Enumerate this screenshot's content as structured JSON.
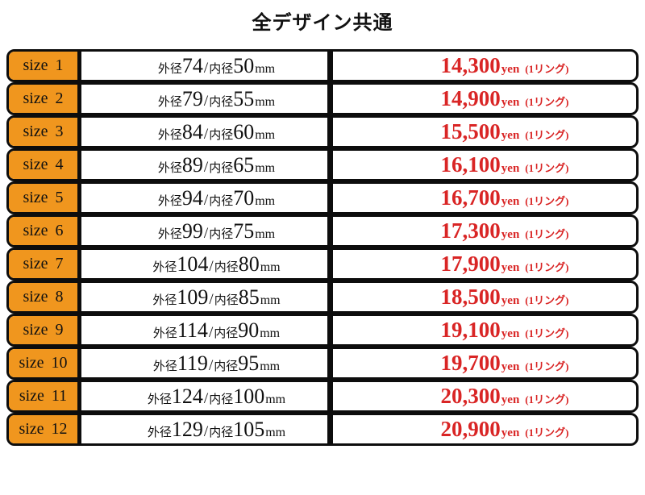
{
  "title": "全デザイン共通",
  "colors": {
    "orange": "#F0961E",
    "price_red": "#D92525",
    "border": "#0D0D0D",
    "text": "#111111"
  },
  "table": {
    "labels": {
      "outer_prefix": "外径",
      "inner_prefix": "内径",
      "separator": "/",
      "unit": "mm",
      "currency": "yen",
      "per_ring_note": "(1リング)"
    },
    "rows": [
      {
        "size": "size 1",
        "outer": "74",
        "inner": "50",
        "price": "14,300"
      },
      {
        "size": "size 2",
        "outer": "79",
        "inner": "55",
        "price": "14,900"
      },
      {
        "size": "size 3",
        "outer": "84",
        "inner": "60",
        "price": "15,500"
      },
      {
        "size": "size 4",
        "outer": "89",
        "inner": "65",
        "price": "16,100"
      },
      {
        "size": "size 5",
        "outer": "94",
        "inner": "70",
        "price": "16,700"
      },
      {
        "size": "size 6",
        "outer": "99",
        "inner": "75",
        "price": "17,300"
      },
      {
        "size": "size 7",
        "outer": "104",
        "inner": "80",
        "price": "17,900"
      },
      {
        "size": "size 8",
        "outer": "109",
        "inner": "85",
        "price": "18,500"
      },
      {
        "size": "size 9",
        "outer": "114",
        "inner": "90",
        "price": "19,100"
      },
      {
        "size": "size 10",
        "outer": "119",
        "inner": "95",
        "price": "19,700"
      },
      {
        "size": "size 11",
        "outer": "124",
        "inner": "100",
        "price": "20,300"
      },
      {
        "size": "size 12",
        "outer": "129",
        "inner": "105",
        "price": "20,900"
      }
    ]
  },
  "chart_data": {
    "type": "table",
    "title": "全デザイン共通",
    "columns": [
      "size",
      "outer_diameter_mm",
      "inner_diameter_mm",
      "price_yen_per_ring"
    ],
    "rows": [
      [
        "size 1",
        74,
        50,
        14300
      ],
      [
        "size 2",
        79,
        55,
        14900
      ],
      [
        "size 3",
        84,
        60,
        15500
      ],
      [
        "size 4",
        89,
        65,
        16100
      ],
      [
        "size 5",
        94,
        70,
        16700
      ],
      [
        "size 6",
        99,
        75,
        17300
      ],
      [
        "size 7",
        104,
        80,
        17900
      ],
      [
        "size 8",
        109,
        85,
        18500
      ],
      [
        "size 9",
        114,
        90,
        19100
      ],
      [
        "size 10",
        119,
        95,
        19700
      ],
      [
        "size 11",
        124,
        100,
        20300
      ],
      [
        "size 12",
        129,
        105,
        20900
      ]
    ]
  }
}
